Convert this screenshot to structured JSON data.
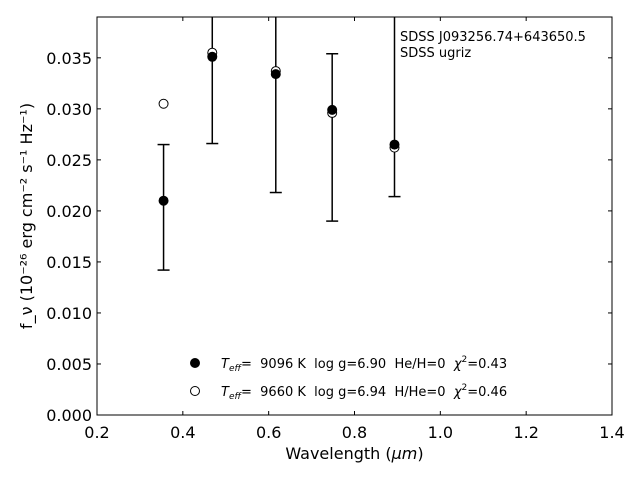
{
  "chart_data": {
    "type": "scatter",
    "xlabel_main": "Wavelength (",
    "xlabel_unit": "μm",
    "xlabel_close": ")",
    "ylabel": "f_ν (10⁻²⁶ erg cm⁻² s⁻¹ Hz⁻¹)",
    "xlim": [
      0.2,
      1.4
    ],
    "ylim": [
      0.0,
      0.039
    ],
    "x_ticks": [
      "0.2",
      "0.4",
      "0.6",
      "0.8",
      "1.0",
      "1.2",
      "1.4"
    ],
    "y_ticks": [
      "0.000",
      "0.005",
      "0.010",
      "0.015",
      "0.020",
      "0.025",
      "0.030",
      "0.035"
    ],
    "annotation": [
      "SDSS J093256.74+643650.5",
      "SDSS ugriz"
    ],
    "grid": false,
    "legend_placement": "bottom-center",
    "series": [
      {
        "marker": "filled-circle",
        "legend": {
          "teff_label": "T",
          "teff_sub": "eff",
          "text1": "=  9096 K  log g=6.90  He/H=0  ",
          "chi_label": "χ",
          "chi_sup": "2",
          "text2": "=0.43"
        },
        "x": [
          0.3551,
          0.4686,
          0.6166,
          0.748,
          0.8932
        ],
        "y": [
          0.021,
          0.0351,
          0.0334,
          0.0299,
          0.0265
        ],
        "yerr_low": [
          0.0142,
          0.0266,
          0.0218,
          0.019,
          0.0214
        ],
        "yerr_high": [
          0.0265,
          0.039,
          0.039,
          0.0354,
          0.039
        ]
      },
      {
        "marker": "open-circle",
        "legend": {
          "teff_label": "T",
          "teff_sub": "eff",
          "text1": "=  9660 K  log g=6.94  H/He=0  ",
          "chi_label": "χ",
          "chi_sup": "2",
          "text2": "=0.46"
        },
        "x": [
          0.3551,
          0.4686,
          0.6166,
          0.748,
          0.8932
        ],
        "y": [
          0.0305,
          0.0355,
          0.0337,
          0.0296,
          0.0262
        ]
      }
    ]
  }
}
